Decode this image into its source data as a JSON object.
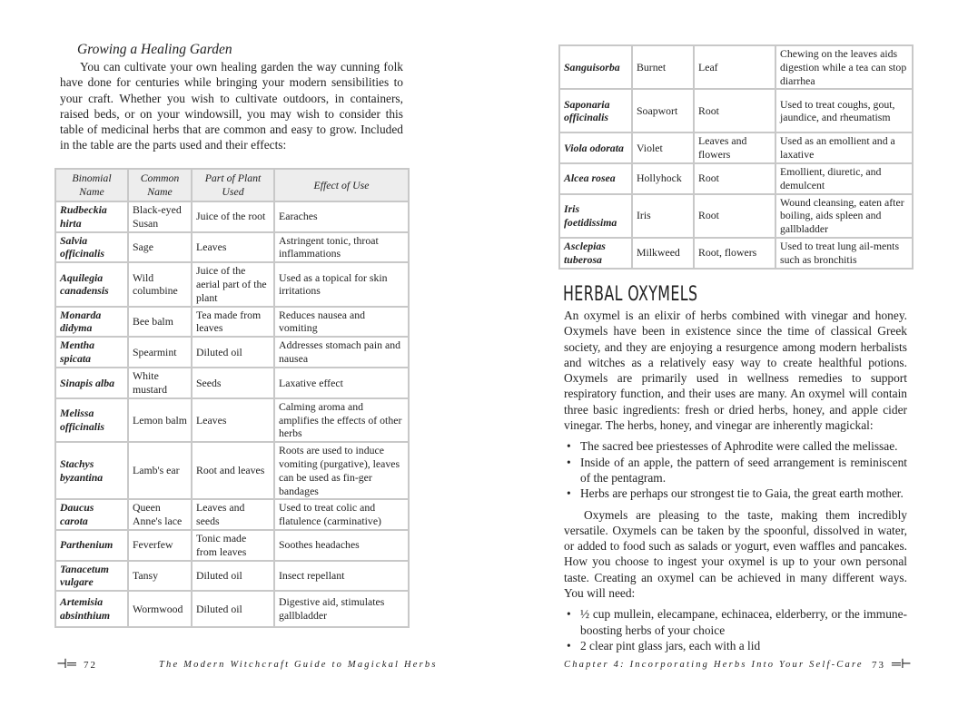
{
  "left_page": {
    "subheading": "Growing a Healing Garden",
    "intro": "You can cultivate your own healing garden the way cunning folk have done for centuries while bringing your modern sensibilities to your craft. Whether you wish to cultivate outdoors, in containers, raised beds, or on your windowsill, you may wish to consider this table of medicinal herbs that are common and easy to grow. Included in the table are the parts used and their effects:",
    "table": {
      "headers": [
        "Binomial Name",
        "Common Name",
        "Part of Plant Used",
        "Effect of Use"
      ],
      "rows": [
        [
          "Rudbeckia hirta",
          "Black-eyed Susan",
          "Juice of the root",
          "Earaches"
        ],
        [
          "Salvia officinalis",
          "Sage",
          "Leaves",
          "Astringent tonic, throat inflammations"
        ],
        [
          "Aquilegia canadensis",
          "Wild columbine",
          "Juice of the aerial part of the plant",
          "Used as a topical for skin irritations"
        ],
        [
          "Monarda didyma",
          "Bee balm",
          "Tea made from leaves",
          "Reduces nausea and vomiting"
        ],
        [
          "Mentha spicata",
          "Spearmint",
          "Diluted oil",
          "Addresses stomach pain and nausea"
        ],
        [
          "Sinapis alba",
          "White mustard",
          "Seeds",
          "Laxative effect"
        ],
        [
          "Melissa officinalis",
          "Lemon balm",
          "Leaves",
          "Calming aroma and amplifies the effects of other herbs"
        ],
        [
          "Stachys byzantina",
          "Lamb's ear",
          "Root and leaves",
          "Roots are used to induce vomiting (purgative), leaves can be used as fin-ger bandages"
        ],
        [
          "Daucus carota",
          "Queen Anne's lace",
          "Leaves and seeds",
          "Used to treat colic and flatulence (carminative)"
        ],
        [
          "Parthenium",
          "Feverfew",
          "Tonic made from leaves",
          "Soothes headaches"
        ],
        [
          "Tanacetum vulgare",
          "Tansy",
          "Diluted oil",
          "Insect repellant"
        ],
        [
          "Artemisia absinthium",
          "Wormwood",
          "Diluted oil",
          "Digestive aid, stimulates gallbladder"
        ]
      ]
    },
    "page_number": "72",
    "footer_title": "The Modern Witchcraft Guide to Magickal Herbs"
  },
  "right_page": {
    "table": {
      "rows": [
        [
          "Sanguisorba",
          "Burnet",
          "Leaf",
          "Chewing on the leaves aids digestion while a tea can stop diarrhea"
        ],
        [
          "Saponaria officinalis",
          "Soapwort",
          "Root",
          "Used to treat coughs, gout, jaundice, and rheumatism"
        ],
        [
          "Viola odorata",
          "Violet",
          "Leaves and flowers",
          "Used as an emollient and a laxative"
        ],
        [
          "Alcea rosea",
          "Hollyhock",
          "Root",
          "Emollient, diuretic, and demulcent"
        ],
        [
          "Iris foetidissima",
          "Iris",
          "Root",
          "Wound cleansing, eaten after boiling, aids spleen and gallbladder"
        ],
        [
          "Asclepias tuberosa",
          "Milkweed",
          "Root, flowers",
          "Used to treat lung ail-ments such as bronchitis"
        ]
      ]
    },
    "heading": "HERBAL OXYMELS",
    "para1": "An oxymel is an elixir of herbs combined with vinegar and honey. Oxymels have been in existence since the time of classical Greek society, and they are enjoying a resurgence among modern herbalists and witches as a relatively easy way to create healthful potions. Oxymels are primarily used in wellness remedies to support respiratory function, and their uses are many. An oxymel will contain three basic ingredients: fresh or dried herbs, honey, and apple cider vinegar. The herbs, honey, and vinegar are inherently magickal:",
    "bullets1": [
      "The sacred bee priestesses of Aphrodite were called the melissae.",
      "Inside of an apple, the pattern of seed arrangement is reminiscent of the pentagram.",
      "Herbs are perhaps our strongest tie to Gaia, the great earth mother."
    ],
    "para2": "Oxymels are pleasing to the taste, making them incredibly versatile. Oxymels can be taken by the spoonful, dissolved in water, or added to food such as salads or yogurt, even waffles and pancakes. How you choose to ingest your oxymel is up to your own personal taste. Creating an oxymel can be achieved in many different ways. You will need:",
    "bullets2": [
      "½ cup mullein, elecampane, echinacea, elderberry, or the immune-boosting herbs of your choice",
      "2 clear pint glass jars, each with a lid"
    ],
    "footer_title": "Chapter 4: Incorporating Herbs Into Your Self-Care",
    "page_number": "73"
  }
}
